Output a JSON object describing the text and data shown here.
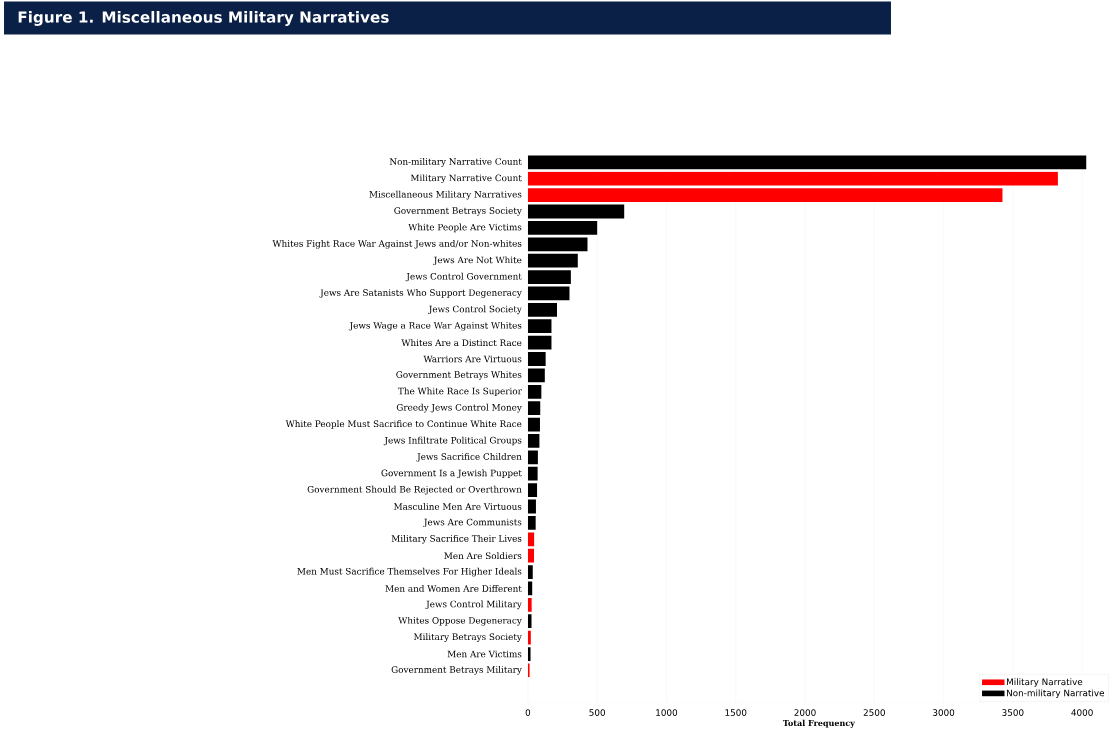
{
  "chart_data": {
    "type": "bar",
    "orientation": "horizontal",
    "title": "Figure 1. Miscellaneous Military Narratives",
    "xlabel": "Total Frequency",
    "categories": [
      "Non-military Narrative Count",
      "Military Narrative Count",
      "Miscellaneous Military Narratives",
      "Government Betrays Society",
      "White People Are Victims",
      "Whites Fight Race War Against Jews and/or Non-whites",
      "Jews Are Not White",
      "Jews Control Government",
      "Jews Are Satanists Who Support Degeneracy",
      "Jews Control Society",
      "Jews Wage a Race War Against Whites",
      "Whites Are a Distinct Race",
      "Warriors Are Virtuous",
      "Government Betrays Whites",
      "The White Race Is Superior",
      "Greedy Jews Control Money",
      "White People Must Sacrifice to Continue White Race",
      "Jews Infiltrate Political Groups",
      "Jews Sacrifice Children",
      "Government Is a Jewish Puppet",
      "Government Should Be Rejected or Overthrown",
      "Masculine Men Are Virtuous",
      "Jews Are Communists",
      "Military Sacrifice Their Lives",
      "Men Are Soldiers",
      "Men Must Sacrifice Themselves For Higher Ideals",
      "Men and Women Are Different",
      "Jews Control Military",
      "Whites Oppose Degeneracy",
      "Military Betrays Society",
      "Men Are Victims",
      "Government Betrays Military"
    ],
    "series": [
      {
        "name": "Military Narrative",
        "color": "#ff0000",
        "values": [
          null,
          3825,
          3425,
          null,
          null,
          null,
          null,
          null,
          null,
          null,
          null,
          null,
          null,
          null,
          null,
          null,
          null,
          null,
          null,
          null,
          null,
          null,
          null,
          45,
          44,
          null,
          null,
          27,
          null,
          21,
          null,
          12
        ]
      },
      {
        "name": "Non-military Narrative",
        "color": "#000000",
        "values": [
          4030,
          null,
          null,
          695,
          500,
          430,
          360,
          310,
          300,
          210,
          170,
          170,
          128,
          122,
          97,
          89,
          87,
          83,
          72,
          70,
          66,
          58,
          56,
          null,
          null,
          35,
          31,
          null,
          26,
          null,
          19,
          null
        ]
      }
    ],
    "xlim": [
      0,
      4200
    ],
    "xticks": [
      0,
      500,
      1000,
      1500,
      2000,
      2500,
      3000,
      3500,
      4000
    ],
    "grid": "x",
    "legend": "bottom right"
  }
}
